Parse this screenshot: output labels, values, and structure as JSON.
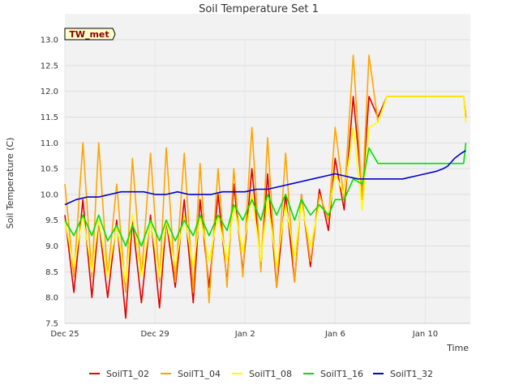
{
  "chart_data": {
    "type": "line",
    "title": "Soil Temperature Set 1",
    "xlabel": "Time",
    "ylabel": "Soil Temperature (C)",
    "ylim": [
      7.5,
      13.0
    ],
    "xlim": [
      "2021-12-25",
      "2022-01-12"
    ],
    "yticks": [
      "7.5",
      "8.0",
      "8.5",
      "9.0",
      "9.5",
      "10.0",
      "10.5",
      "11.0",
      "11.5",
      "12.0",
      "12.5",
      "13.0"
    ],
    "xticks": [
      {
        "label": "Dec 25",
        "day": 0
      },
      {
        "label": "Dec 29",
        "day": 4
      },
      {
        "label": "Jan 2",
        "day": 8
      },
      {
        "label": "Jan 6",
        "day": 12
      },
      {
        "label": "Jan 10",
        "day": 16
      }
    ],
    "grid": true,
    "banded_background": true,
    "legend_position": "bottom",
    "annotation": "TW_met",
    "series": [
      {
        "name": "SoilT1_02",
        "color": "#e00000",
        "x": [
          0.0,
          0.4,
          0.8,
          1.2,
          1.5,
          1.9,
          2.3,
          2.7,
          3.0,
          3.4,
          3.8,
          4.2,
          4.5,
          4.9,
          5.3,
          5.7,
          6.0,
          6.4,
          6.8,
          7.2,
          7.5,
          7.9,
          8.3,
          8.7,
          9.0,
          9.4,
          9.8,
          10.2,
          10.5,
          10.9,
          11.3,
          11.7,
          12.0,
          12.4,
          12.8,
          13.2,
          13.5,
          13.9,
          14.3,
          14.7,
          15.0,
          15.4,
          15.8,
          16.2,
          16.6,
          17.0,
          17.4,
          17.7,
          17.8
        ],
        "y": [
          9.6,
          8.1,
          9.9,
          8.0,
          9.5,
          8.0,
          9.5,
          7.6,
          9.5,
          7.9,
          9.6,
          7.8,
          9.5,
          8.2,
          9.9,
          7.9,
          9.9,
          8.2,
          10.0,
          8.3,
          10.2,
          8.5,
          10.5,
          8.6,
          10.4,
          8.2,
          10.0,
          8.3,
          10.0,
          8.6,
          10.1,
          9.3,
          10.7,
          9.7,
          11.9,
          10.0,
          11.9,
          11.5,
          11.9,
          11.9,
          11.9,
          11.9,
          11.9,
          11.9,
          11.9,
          11.9,
          11.9,
          11.9,
          11.5
        ]
      },
      {
        "name": "SoilT1_04",
        "color": "#ffa500",
        "x": [
          0.0,
          0.4,
          0.8,
          1.2,
          1.5,
          1.9,
          2.3,
          2.7,
          3.0,
          3.4,
          3.8,
          4.2,
          4.5,
          4.9,
          5.3,
          5.7,
          6.0,
          6.4,
          6.8,
          7.2,
          7.5,
          7.9,
          8.3,
          8.7,
          9.0,
          9.4,
          9.8,
          10.2,
          10.5,
          10.9,
          11.3,
          11.7,
          12.0,
          12.4,
          12.8,
          13.2,
          13.5,
          13.9,
          14.3,
          14.7,
          15.0,
          15.4,
          15.8,
          16.2,
          16.6,
          17.0,
          17.4,
          17.7,
          17.8
        ],
        "y": [
          10.2,
          8.4,
          11.0,
          8.4,
          11.0,
          8.4,
          10.2,
          8.1,
          10.7,
          8.4,
          10.8,
          8.3,
          10.9,
          8.3,
          10.8,
          8.1,
          10.6,
          7.9,
          10.5,
          8.2,
          10.5,
          8.4,
          11.3,
          8.5,
          11.1,
          8.2,
          10.8,
          8.3,
          10.0,
          8.7,
          10.0,
          9.5,
          11.3,
          9.9,
          12.7,
          9.9,
          12.7,
          11.4,
          11.9,
          11.9,
          11.9,
          11.9,
          11.9,
          11.9,
          11.9,
          11.9,
          11.9,
          11.9,
          11.4
        ]
      },
      {
        "name": "SoilT1_08",
        "color": "#ffff00",
        "x": [
          0.0,
          0.4,
          0.8,
          1.2,
          1.5,
          1.9,
          2.3,
          2.7,
          3.0,
          3.4,
          3.8,
          4.2,
          4.5,
          4.9,
          5.3,
          5.7,
          6.0,
          6.4,
          6.8,
          7.2,
          7.5,
          7.9,
          8.3,
          8.7,
          9.0,
          9.4,
          9.8,
          10.2,
          10.5,
          10.9,
          11.3,
          11.7,
          12.0,
          12.4,
          12.8,
          13.2,
          13.5,
          13.9,
          14.3,
          14.7,
          15.0,
          15.4,
          15.8,
          16.2,
          16.6,
          17.0,
          17.4,
          17.7,
          17.8
        ],
        "y": [
          9.5,
          8.6,
          9.6,
          8.5,
          9.5,
          8.4,
          9.4,
          8.3,
          9.6,
          8.4,
          9.5,
          8.4,
          9.5,
          8.6,
          9.6,
          8.6,
          9.6,
          8.7,
          9.6,
          8.7,
          9.8,
          8.9,
          10.0,
          8.7,
          9.9,
          8.6,
          9.8,
          8.8,
          9.8,
          9.0,
          9.8,
          9.6,
          10.4,
          10.0,
          11.3,
          9.7,
          11.3,
          11.4,
          11.9,
          11.9,
          11.9,
          11.9,
          11.9,
          11.9,
          11.9,
          11.9,
          11.9,
          11.9,
          11.4
        ]
      },
      {
        "name": "SoilT1_16",
        "color": "#00e000",
        "x": [
          0.0,
          0.4,
          0.8,
          1.2,
          1.5,
          1.9,
          2.3,
          2.7,
          3.0,
          3.4,
          3.8,
          4.2,
          4.5,
          4.9,
          5.3,
          5.7,
          6.0,
          6.4,
          6.8,
          7.2,
          7.5,
          7.9,
          8.3,
          8.7,
          9.0,
          9.4,
          9.8,
          10.2,
          10.5,
          10.9,
          11.3,
          11.7,
          12.0,
          12.4,
          12.8,
          13.2,
          13.5,
          13.9,
          14.3,
          14.7,
          15.0,
          15.4,
          15.8,
          16.2,
          16.6,
          17.0,
          17.4,
          17.7,
          17.8
        ],
        "y": [
          9.5,
          9.2,
          9.6,
          9.2,
          9.6,
          9.1,
          9.4,
          9.0,
          9.4,
          9.0,
          9.5,
          9.1,
          9.5,
          9.1,
          9.5,
          9.2,
          9.6,
          9.2,
          9.6,
          9.3,
          9.8,
          9.5,
          9.9,
          9.5,
          10.0,
          9.6,
          10.0,
          9.5,
          9.9,
          9.6,
          9.8,
          9.6,
          9.9,
          9.9,
          10.3,
          10.2,
          10.9,
          10.6,
          10.6,
          10.6,
          10.6,
          10.6,
          10.6,
          10.6,
          10.6,
          10.6,
          10.6,
          10.6,
          11.0
        ]
      },
      {
        "name": "SoilT1_32",
        "color": "#0000cc",
        "x": [
          0.0,
          0.5,
          1.0,
          1.5,
          2.0,
          2.5,
          3.0,
          3.5,
          4.0,
          4.5,
          5.0,
          5.5,
          6.0,
          6.5,
          7.0,
          7.5,
          8.0,
          8.5,
          9.0,
          9.5,
          10.0,
          10.5,
          11.0,
          11.5,
          12.0,
          12.5,
          13.0,
          13.5,
          14.0,
          14.5,
          15.0,
          15.5,
          16.0,
          16.5,
          16.8,
          17.0,
          17.3,
          17.6,
          17.8
        ],
        "y": [
          9.8,
          9.9,
          9.95,
          9.95,
          10.0,
          10.05,
          10.05,
          10.05,
          10.0,
          10.0,
          10.05,
          10.0,
          10.0,
          10.0,
          10.05,
          10.05,
          10.05,
          10.1,
          10.1,
          10.15,
          10.2,
          10.25,
          10.3,
          10.35,
          10.4,
          10.35,
          10.3,
          10.3,
          10.3,
          10.3,
          10.3,
          10.35,
          10.4,
          10.45,
          10.5,
          10.55,
          10.7,
          10.8,
          10.85
        ]
      }
    ]
  }
}
